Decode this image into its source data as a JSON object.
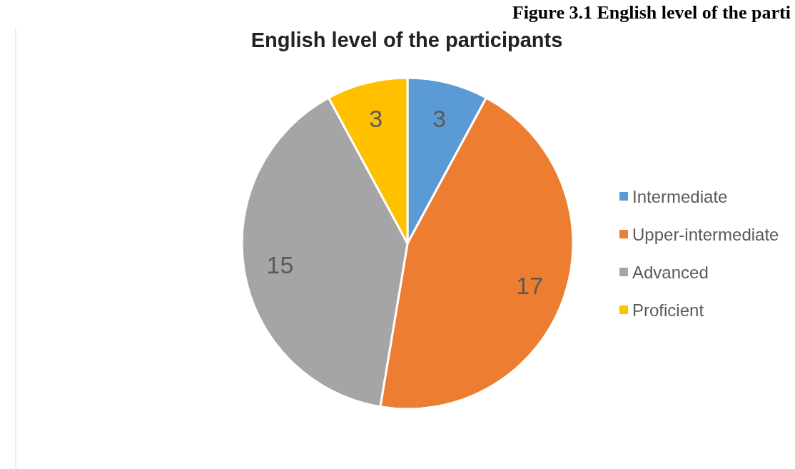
{
  "chart_data": {
    "type": "pie",
    "title": "English level of the participants",
    "annotations": [
      "Figure 3.1 English level of the parti"
    ],
    "categories": [
      "Intermediate",
      "Upper-intermediate",
      "Advanced",
      "Proficient"
    ],
    "values": [
      3,
      17,
      15,
      3
    ],
    "colors": [
      "#5b9bd5",
      "#ed7d31",
      "#a5a5a5",
      "#ffc000"
    ],
    "data_labels": true,
    "legend": "right"
  }
}
